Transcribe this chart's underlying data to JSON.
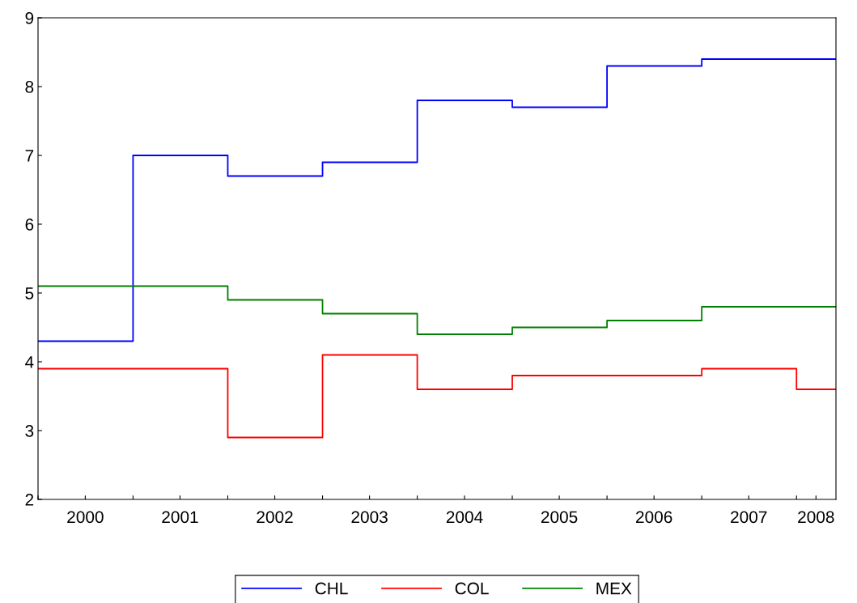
{
  "chart_data": {
    "type": "step",
    "x": [
      "2000-01",
      "2001-01",
      "2002-01",
      "2003-01",
      "2004-01",
      "2005-01",
      "2006-01",
      "2007-01",
      "2008-01",
      "2008-06"
    ],
    "series": [
      {
        "name": "CHL",
        "color": "#0000ff",
        "values": [
          4.3,
          7.0,
          6.7,
          6.9,
          7.8,
          7.7,
          8.3,
          8.4,
          8.4,
          8.4
        ]
      },
      {
        "name": "COL",
        "color": "#ff0000",
        "values": [
          3.9,
          3.9,
          2.9,
          4.1,
          3.6,
          3.8,
          3.8,
          3.9,
          3.6,
          3.6
        ]
      },
      {
        "name": "MEX",
        "color": "#008000",
        "values": [
          5.1,
          5.1,
          4.9,
          4.7,
          4.4,
          4.5,
          4.6,
          4.8,
          4.8,
          4.8
        ]
      }
    ],
    "xlim": [
      "2000-01",
      "2008-06"
    ],
    "xticks": [
      {
        "value": "2000-01",
        "label": null
      },
      {
        "value": "2000-07",
        "label": "2000"
      },
      {
        "value": "2001-01",
        "label": null
      },
      {
        "value": "2001-07",
        "label": "2001"
      },
      {
        "value": "2002-01",
        "label": null
      },
      {
        "value": "2002-07",
        "label": "2002"
      },
      {
        "value": "2003-01",
        "label": null
      },
      {
        "value": "2003-07",
        "label": "2003"
      },
      {
        "value": "2004-01",
        "label": null
      },
      {
        "value": "2004-07",
        "label": "2004"
      },
      {
        "value": "2005-01",
        "label": null
      },
      {
        "value": "2005-07",
        "label": "2005"
      },
      {
        "value": "2006-01",
        "label": null
      },
      {
        "value": "2006-07",
        "label": "2006"
      },
      {
        "value": "2007-01",
        "label": null
      },
      {
        "value": "2007-07",
        "label": "2007"
      },
      {
        "value": "2008-01",
        "label": null
      },
      {
        "value": "2008-03-16",
        "label": "2008"
      }
    ],
    "ylim": [
      2,
      9
    ],
    "yticks": [
      2,
      3,
      4,
      5,
      6,
      7,
      8,
      9
    ],
    "grid": false,
    "legend": "bottom",
    "line_style": "solid",
    "marker": "none"
  }
}
